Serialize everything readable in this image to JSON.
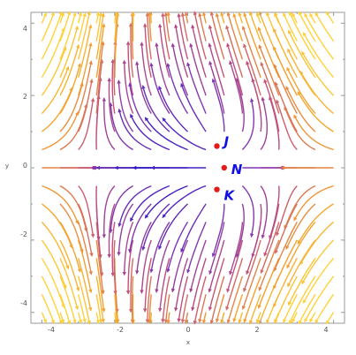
{
  "chart_data": {
    "type": "streamplot",
    "title": "",
    "xlabel": "x",
    "ylabel": "y",
    "xlim": [
      -4.3,
      4.3
    ],
    "ylim": [
      -4.3,
      4.3
    ],
    "x_ticks": [
      "-4",
      "-2",
      "0",
      "2",
      "4"
    ],
    "y_ticks": [
      "-4",
      "-2",
      "0",
      "2",
      "4"
    ],
    "grid": false,
    "color_scale": [
      "#2a16c8",
      "#7b36b5",
      "#c4507a",
      "#f3a02e",
      "#ffd23a"
    ],
    "color_meaning": "stream speed (low = blue, high = yellow)",
    "critical_points": [
      {
        "label": "J",
        "x": 0.8,
        "y": 0.6,
        "color": "#e51b1b"
      },
      {
        "label": "N",
        "x": 1.0,
        "y": 0.0,
        "color": "#e51b1b"
      },
      {
        "label": "K",
        "x": 0.8,
        "y": -0.6,
        "color": "#e51b1b"
      }
    ],
    "saddle_region": {
      "x": -0.9,
      "y": 0.0
    }
  }
}
